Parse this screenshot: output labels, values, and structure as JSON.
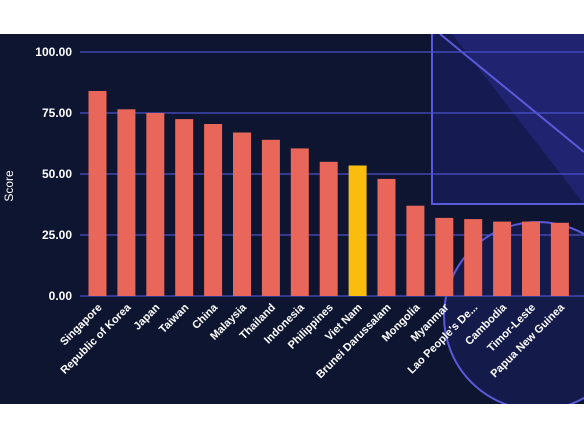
{
  "chart_data": {
    "type": "bar",
    "title": "",
    "xlabel": "",
    "ylabel": "Score",
    "ylim": [
      0,
      100
    ],
    "yticks": [
      "0.00",
      "25.00",
      "50.00",
      "75.00",
      "100.00"
    ],
    "grid": true,
    "categories": [
      "Singapore",
      "Republic of Korea",
      "Japan",
      "Taiwan",
      "China",
      "Malaysia",
      "Thailand",
      "Indonesia",
      "Philippines",
      "Viet Nam",
      "Brunei Darussalam",
      "Mongolia",
      "Myanmar",
      "Lao People's De...",
      "Cambodia",
      "Timor-Leste",
      "Papua New Guinea"
    ],
    "values": [
      84,
      76.5,
      75,
      72.5,
      70.5,
      67,
      64,
      60.5,
      55,
      53.5,
      48,
      37,
      32,
      31.5,
      30.5,
      30.5,
      30
    ],
    "highlight": "Viet Nam"
  },
  "colors": {
    "background": "#0e1530",
    "bar": "#e8665a",
    "highlight_bar": "#fbbd0d",
    "gridline": "#4a50c8",
    "decor_line": "#5a5ad8",
    "text": "#ffffff"
  }
}
